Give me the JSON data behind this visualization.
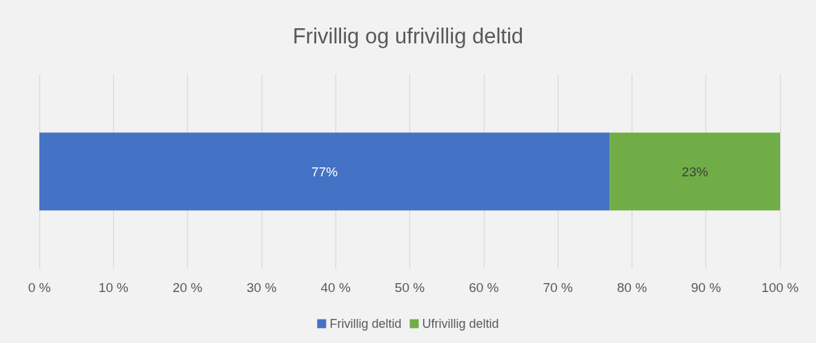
{
  "chart_data": {
    "type": "bar",
    "title": "Frivillig og ufrivillig deltid",
    "orientation": "horizontal",
    "stacked": true,
    "categories": [
      null
    ],
    "series": [
      {
        "name": "Frivillig deltid",
        "color": "#4472c4",
        "values": [
          77
        ],
        "value_labels": [
          "77%"
        ]
      },
      {
        "name": "Ufrivillig deltid",
        "color": "#70ad47",
        "values": [
          23
        ],
        "value_labels": [
          "23%"
        ]
      }
    ],
    "xlim": [
      0,
      100
    ],
    "xticks": [
      {
        "value": 0,
        "label": "0 %"
      },
      {
        "value": 10,
        "label": "10 %"
      },
      {
        "value": 20,
        "label": "20 %"
      },
      {
        "value": 30,
        "label": "30 %"
      },
      {
        "value": 40,
        "label": "40 %"
      },
      {
        "value": 50,
        "label": "50 %"
      },
      {
        "value": 60,
        "label": "60 %"
      },
      {
        "value": 70,
        "label": "70 %"
      },
      {
        "value": 80,
        "label": "80 %"
      },
      {
        "value": 90,
        "label": "90 %"
      },
      {
        "value": 100,
        "label": "100 %"
      }
    ],
    "grid": "x",
    "legend": "bottom"
  }
}
